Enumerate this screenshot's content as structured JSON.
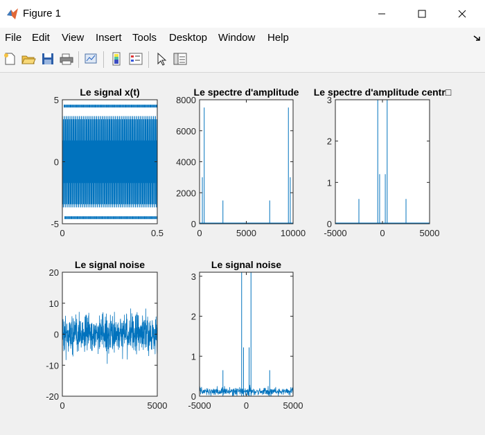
{
  "window": {
    "title": "Figure 1"
  },
  "menu": [
    "File",
    "Edit",
    "View",
    "Insert",
    "Tools",
    "Desktop",
    "Window",
    "Help"
  ],
  "toolbar": {
    "icons": [
      "new-figure-icon",
      "open-file-icon",
      "save-icon",
      "print-icon",
      "link-plot-icon",
      "insert-colorbar-icon",
      "insert-legend-icon",
      "edit-plot-cursor-icon",
      "property-inspector-icon"
    ]
  },
  "colors": {
    "line": "#0072bd",
    "axes_bg": "#ffffff",
    "figure_bg": "#f0f0f0"
  },
  "chart_data": [
    {
      "type": "line",
      "title": "Le signal x(t)",
      "xlim": [
        0,
        0.5
      ],
      "ylim": [
        -5,
        5
      ],
      "xticks": [
        "0",
        "0.5"
      ],
      "yticks": [
        "-5",
        "0",
        "5"
      ],
      "description_values": {
        "x_range": [
          0,
          0.5
        ],
        "amplitude_max": 5
      }
    },
    {
      "type": "line",
      "title": "Le spectre d'amplitude",
      "xlim": [
        0,
        10000
      ],
      "ylim": [
        0,
        8000
      ],
      "xticks": [
        "0",
        "5000",
        "10000"
      ],
      "yticks": [
        "0",
        "2000",
        "4000",
        "6000",
        "8000"
      ],
      "spikes": {
        "x": [
          300,
          500,
          2500,
          7500,
          9500,
          9700
        ],
        "y": [
          3000,
          7500,
          1500,
          1500,
          7500,
          3000
        ]
      }
    },
    {
      "type": "line",
      "title": "Le spectre d'amplitude centr□",
      "xlim": [
        -5000,
        5000
      ],
      "ylim": [
        0,
        3
      ],
      "xticks": [
        "-5000",
        "0",
        "5000"
      ],
      "yticks": [
        "0",
        "1",
        "2",
        "3"
      ],
      "spikes": {
        "x": [
          -2500,
          -500,
          -300,
          300,
          500,
          2500
        ],
        "y": [
          0.6,
          3.0,
          1.2,
          1.2,
          3.0,
          0.6
        ]
      }
    },
    {
      "type": "line",
      "title": "Le signal noise",
      "xlim": [
        0,
        5000
      ],
      "ylim": [
        -20,
        20
      ],
      "xticks": [
        "0",
        "5000"
      ],
      "yticks": [
        "-20",
        "-10",
        "0",
        "10",
        "20"
      ]
    },
    {
      "type": "line",
      "title": "Le signal noise",
      "xlim": [
        -5000,
        5000
      ],
      "ylim": [
        0,
        3.1
      ],
      "xticks": [
        "-5000",
        "0",
        "5000"
      ],
      "yticks": [
        "0",
        "1",
        "2",
        "3"
      ],
      "spikes": {
        "x": [
          -2500,
          -500,
          -300,
          300,
          500,
          2500
        ],
        "y": [
          0.65,
          3.1,
          1.22,
          1.22,
          3.1,
          0.65
        ]
      },
      "noise_floor": 0.2
    }
  ]
}
